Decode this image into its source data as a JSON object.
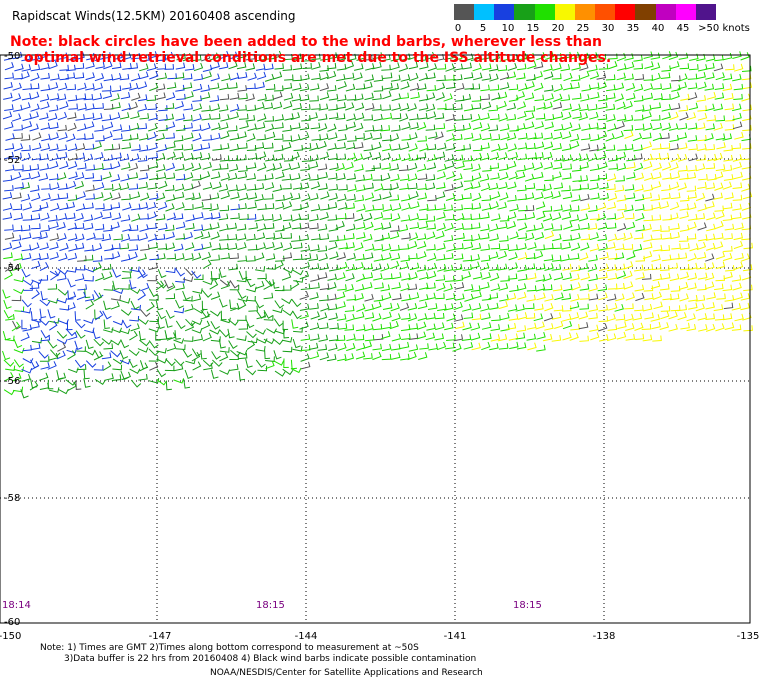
{
  "title": "Rapidscat Winds(12.5KM) 20160408 ascending",
  "note_line1": "Note: black circles have been added to the wind barbs, wherever less than",
  "note_line2": "optimal wind retrieval conditions are met due to the ISS altitude changes.",
  "scale": {
    "colors": [
      "#555555",
      "#00c0ff",
      "#1840e0",
      "#18a018",
      "#20e000",
      "#f8f800",
      "#ff9000",
      "#ff5000",
      "#ff0000",
      "#804000",
      "#c000c0",
      "#ff00ff",
      "#50148c"
    ],
    "labels": [
      "0",
      "5",
      "10",
      "15",
      "20",
      "25",
      "30",
      "35",
      "40",
      "45",
      ">50 knots"
    ]
  },
  "lat_labels": [
    "-50",
    "-52",
    "-54",
    "-56",
    "-58",
    "-60"
  ],
  "lon_labels": [
    "-150",
    "-147",
    "-144",
    "-141",
    "-138",
    "-135"
  ],
  "time_labels": [
    "18:14",
    "18:15",
    "18:15"
  ],
  "footer": {
    "line1": "Note: 1) Times are GMT 2)Times along bottom correspond to measurement at ~50S",
    "line2": "3)Data buffer is 22 hrs from 20160408 4) Black wind barbs indicate possible contamination",
    "line3": "NOAA/NESDIS/Center for Satellite Applications and Research"
  }
}
